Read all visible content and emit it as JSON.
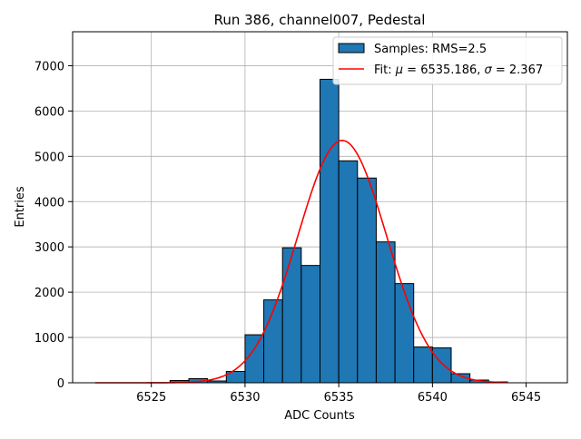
{
  "chart_data": {
    "type": "bar",
    "title": "Run 386, channel007, Pedestal",
    "xlabel": "ADC Counts",
    "ylabel": "Entries",
    "xlim": [
      6520.8,
      6547.2
    ],
    "ylim": [
      0,
      7750
    ],
    "xticks": [
      6525,
      6530,
      6535,
      6540,
      6545
    ],
    "yticks": [
      0,
      1000,
      2000,
      3000,
      4000,
      5000,
      6000,
      7000
    ],
    "grid": true,
    "legend_position": "upper right",
    "bin_width": 1,
    "bins": [
      {
        "left": 6526,
        "value": 50
      },
      {
        "left": 6527,
        "value": 90
      },
      {
        "left": 6528,
        "value": 40
      },
      {
        "left": 6529,
        "value": 250
      },
      {
        "left": 6530,
        "value": 1060
      },
      {
        "left": 6531,
        "value": 1830
      },
      {
        "left": 6532,
        "value": 2980
      },
      {
        "left": 6533,
        "value": 2590
      },
      {
        "left": 6534,
        "value": 6700
      },
      {
        "left": 6535,
        "value": 4900
      },
      {
        "left": 6536,
        "value": 4520
      },
      {
        "left": 6537,
        "value": 3110
      },
      {
        "left": 6538,
        "value": 2190
      },
      {
        "left": 6539,
        "value": 790
      },
      {
        "left": 6540,
        "value": 770
      },
      {
        "left": 6541,
        "value": 200
      },
      {
        "left": 6542,
        "value": 60
      },
      {
        "left": 6543,
        "value": 20
      }
    ],
    "fit": {
      "mu": 6535.186,
      "sigma": 2.367,
      "amplitude": 5350,
      "x_range": [
        6522,
        6544
      ]
    },
    "series": [
      {
        "name": "Samples: RMS=2.5",
        "kind": "histogram",
        "color": "#1f77b4"
      },
      {
        "name_prefix": "Fit: ",
        "name_mu": "μ",
        "name_mid": " = 6535.186, ",
        "name_sigma": "σ",
        "name_suffix": " = 2.367",
        "kind": "line",
        "color": "#ff0000"
      }
    ]
  }
}
